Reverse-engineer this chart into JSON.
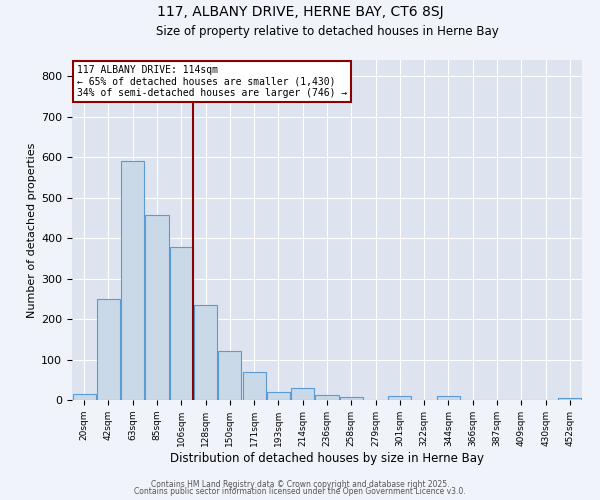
{
  "title1": "117, ALBANY DRIVE, HERNE BAY, CT6 8SJ",
  "title2": "Size of property relative to detached houses in Herne Bay",
  "xlabel": "Distribution of detached houses by size in Herne Bay",
  "ylabel": "Number of detached properties",
  "bar_color": "#c9d9e8",
  "bar_edge_color": "#5b9bd5",
  "plot_bg_color": "#dde4f0",
  "fig_bg_color": "#f0f3fa",
  "grid_color": "#ffffff",
  "annotation_line_color": "#8b0000",
  "categories": [
    "20sqm",
    "42sqm",
    "63sqm",
    "85sqm",
    "106sqm",
    "128sqm",
    "150sqm",
    "171sqm",
    "193sqm",
    "214sqm",
    "236sqm",
    "258sqm",
    "279sqm",
    "301sqm",
    "322sqm",
    "344sqm",
    "366sqm",
    "387sqm",
    "409sqm",
    "430sqm",
    "452sqm"
  ],
  "values": [
    15,
    250,
    590,
    458,
    378,
    235,
    122,
    68,
    20,
    30,
    12,
    8,
    0,
    10,
    0,
    10,
    0,
    0,
    0,
    0,
    5
  ],
  "ylim": [
    0,
    840
  ],
  "yticks": [
    0,
    100,
    200,
    300,
    400,
    500,
    600,
    700,
    800
  ],
  "property_label": "117 ALBANY DRIVE: 114sqm",
  "pct_smaller": "65% of detached houses are smaller (1,430)",
  "pct_larger": "34% of semi-detached houses are larger (746)",
  "vline_x": 4.5,
  "footer1": "Contains HM Land Registry data © Crown copyright and database right 2025.",
  "footer2": "Contains public sector information licensed under the Open Government Licence v3.0."
}
